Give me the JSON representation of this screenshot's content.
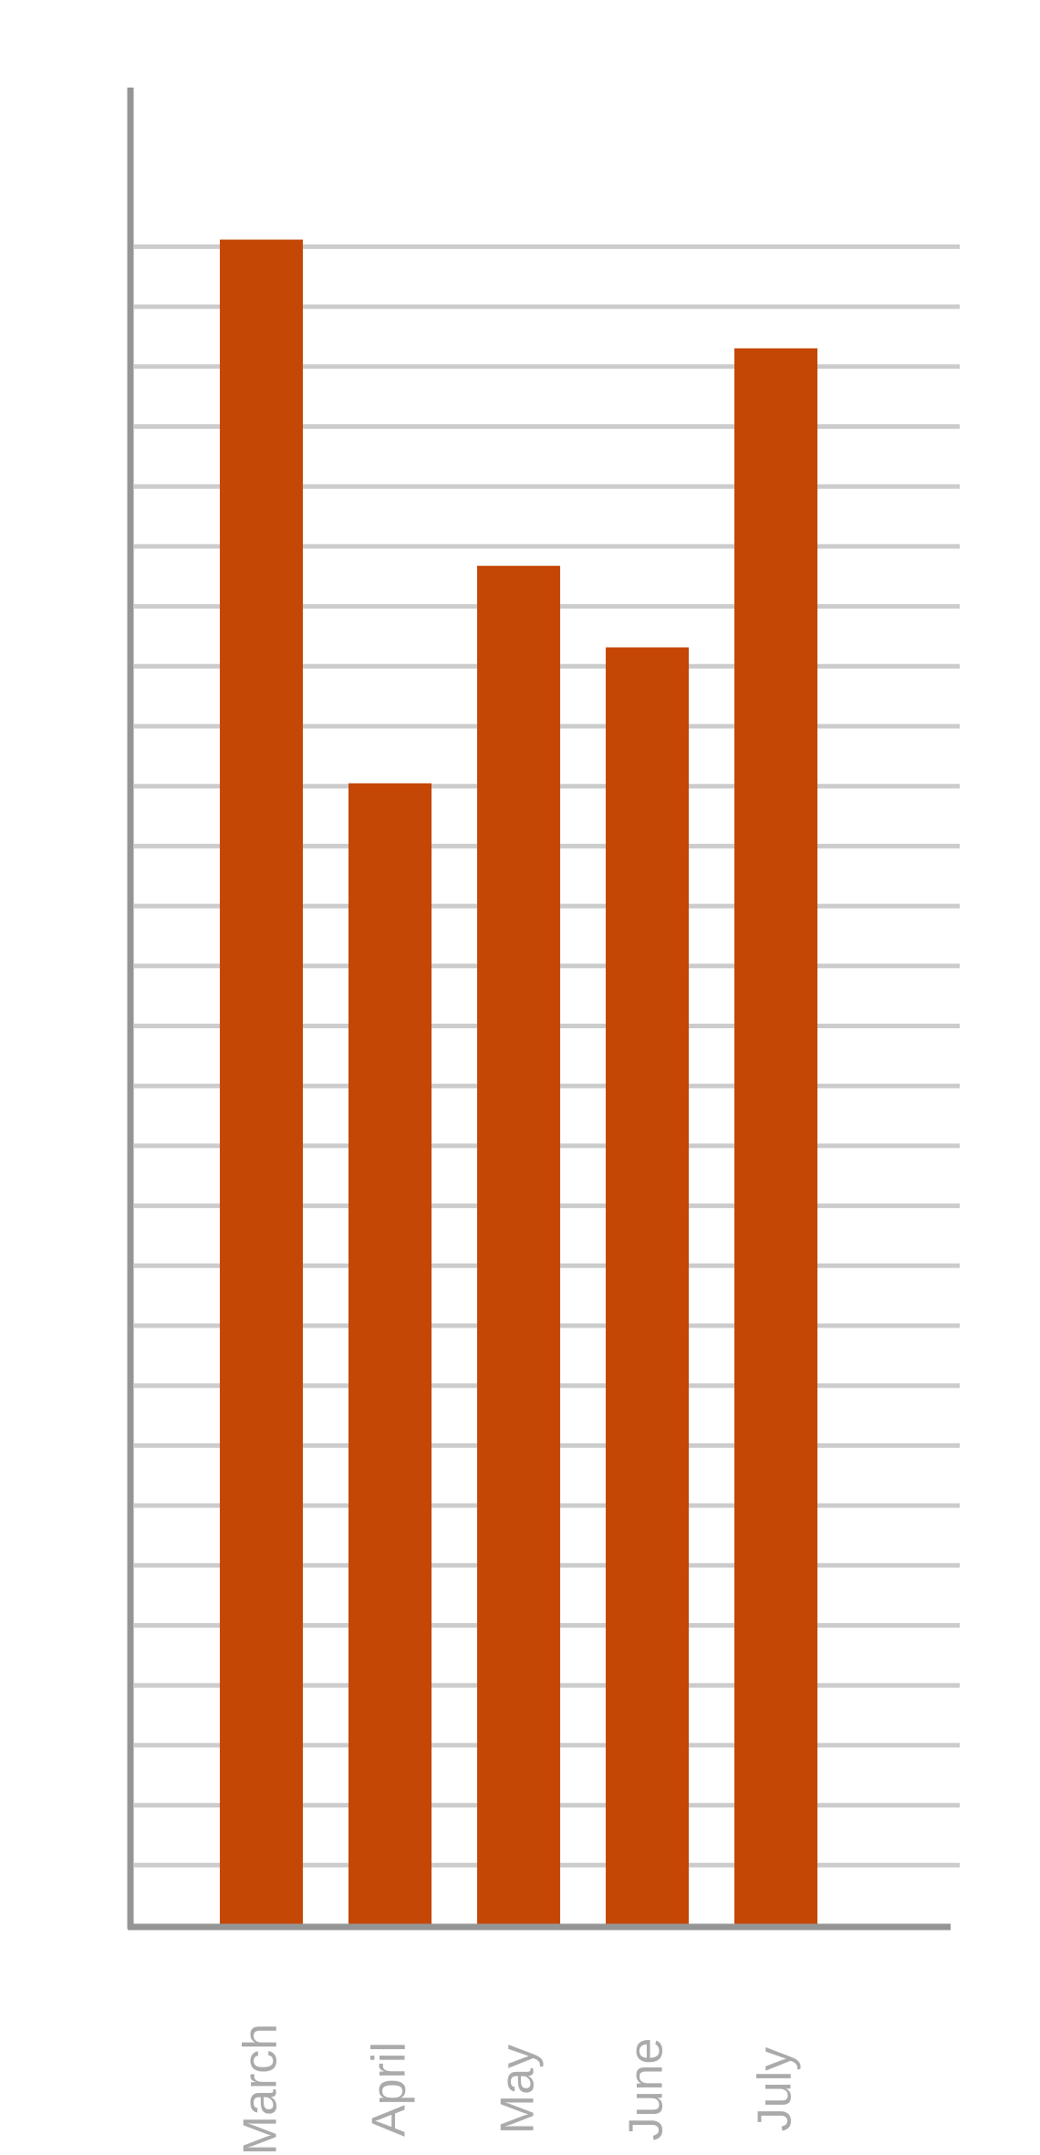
{
  "chart_data": {
    "type": "bar",
    "title": "",
    "xlabel": "",
    "ylabel": "",
    "categories": [
      "March",
      "April",
      "May",
      "June",
      "July"
    ],
    "values": [
      31,
      21,
      25,
      23.5,
      29
    ],
    "ylim": [
      0,
      32
    ],
    "grid": true,
    "legend": "none",
    "colors": {
      "bar": "#c44706",
      "grid": "#cccccc",
      "axis": "#959595",
      "tick_label": "#aaaaaa"
    }
  }
}
